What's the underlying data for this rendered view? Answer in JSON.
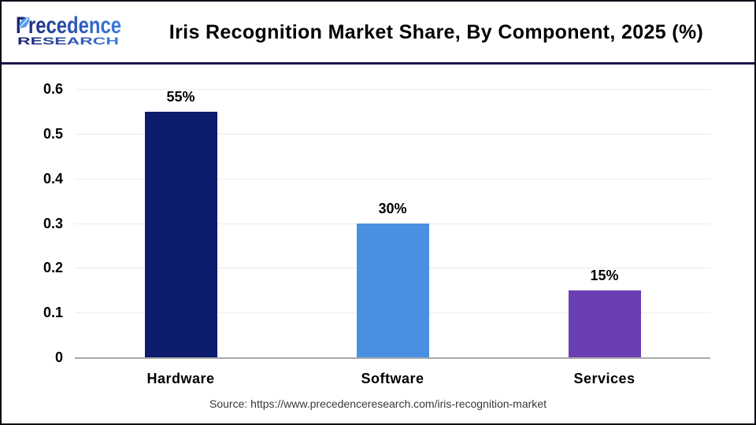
{
  "brand": {
    "name_line1": "Precedence",
    "name_line2": "RESEARCH",
    "gradient_start": "#1e2270",
    "gradient_mid": "#2b4ea8",
    "gradient_end": "#3d7ee3",
    "leaf_color": "#4d9ce8"
  },
  "header": {
    "title": "Iris Recognition Market Share, By Component, 2025 (%)"
  },
  "chart_data": {
    "type": "bar",
    "title": "Iris Recognition Market Share, By Component, 2025 (%)",
    "categories": [
      "Hardware",
      "Software",
      "Services"
    ],
    "values": [
      0.55,
      0.3,
      0.15
    ],
    "value_labels": [
      "55%",
      "30%",
      "15%"
    ],
    "bar_colors": [
      "#0e1c6e",
      "#4a90e2",
      "#6a3fb3"
    ],
    "xlabel": "",
    "ylabel": "",
    "ylim": [
      0,
      0.6
    ],
    "yticks": [
      0,
      0.1,
      0.2,
      0.3,
      0.4,
      0.5,
      0.6
    ],
    "ytick_labels": [
      "0",
      "0.1",
      "0.2",
      "0.3",
      "0.4",
      "0.5",
      "0.6"
    ],
    "grid": true,
    "legend": false
  },
  "footer": {
    "source_text": "Source: https://www.precedenceresearch.com/iris-recognition-market"
  }
}
